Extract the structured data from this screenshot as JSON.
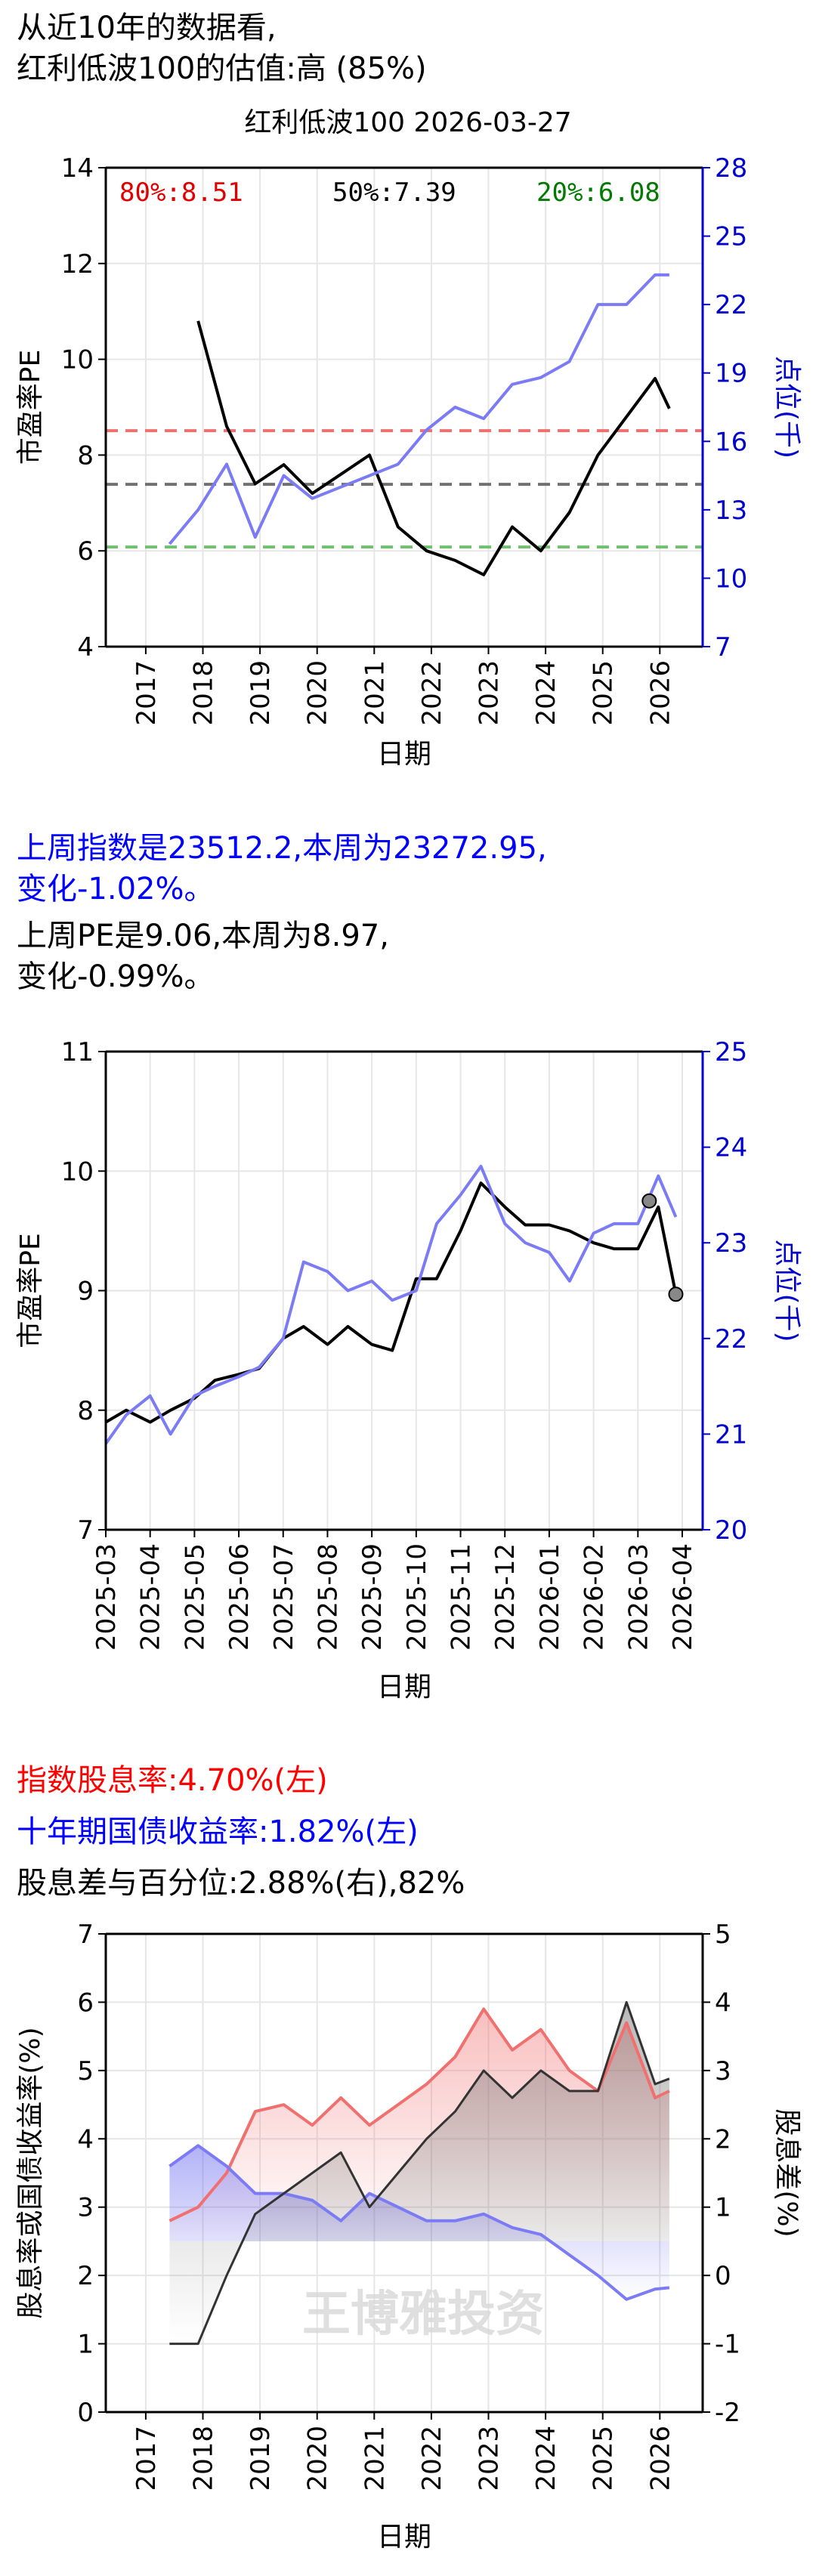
{
  "header": {
    "line1": "从近10年的数据看,",
    "line2": "红利低波100的估值:高 (85%)"
  },
  "chart1": {
    "title": "红利低波100 2026-03-27",
    "ylabel_left": "市盈率PE",
    "ylabel_right": "点位(千)",
    "xlabel": "日期",
    "pct80_label": "80%:8.51",
    "pct50_label": "50%:7.39",
    "pct20_label": "20%:6.08",
    "left_ticks": [
      "4",
      "6",
      "8",
      "10",
      "12",
      "14"
    ],
    "right_ticks": [
      "7",
      "10",
      "13",
      "16",
      "19",
      "22",
      "25",
      "28"
    ],
    "x_ticks": [
      "2017",
      "2018",
      "2019",
      "2020",
      "2021",
      "2022",
      "2023",
      "2024",
      "2025",
      "2026"
    ]
  },
  "weekly": {
    "index_line1": "上周指数是23512.2,本周为23272.95,",
    "index_line2": "变化-1.02%。",
    "pe_line1": "上周PE是9.06,本周为8.97,",
    "pe_line2": "变化-0.99%。"
  },
  "chart2": {
    "ylabel_left": "市盈率PE",
    "ylabel_right": "点位(千)",
    "xlabel": "日期",
    "left_ticks": [
      "7",
      "8",
      "9",
      "10",
      "11"
    ],
    "right_ticks": [
      "20",
      "21",
      "22",
      "23",
      "24",
      "25"
    ],
    "x_ticks": [
      "2025-03",
      "2025-04",
      "2025-05",
      "2025-06",
      "2025-07",
      "2025-08",
      "2025-09",
      "2025-10",
      "2025-11",
      "2025-12",
      "2026-01",
      "2026-02",
      "2026-03",
      "2026-04"
    ]
  },
  "yield": {
    "line1": "指数股息率:4.70%(左)",
    "line2": "十年期国债收益率:1.82%(左)",
    "line3": "股息差与百分位:2.88%(右),82%"
  },
  "chart3": {
    "ylabel_left": "股息率或国债收益率(%)",
    "ylabel_right": "股息差(%)",
    "xlabel": "日期",
    "watermark": "王博雅投资",
    "left_ticks": [
      "0",
      "1",
      "2",
      "3",
      "4",
      "5",
      "6",
      "7"
    ],
    "right_ticks": [
      "-2",
      "-1",
      "0",
      "1",
      "2",
      "3",
      "4",
      "5"
    ],
    "x_ticks": [
      "2017",
      "2018",
      "2019",
      "2020",
      "2021",
      "2022",
      "2023",
      "2024",
      "2025",
      "2026"
    ]
  },
  "chart_data": [
    {
      "type": "line",
      "title": "红利低波100 2026-03-27",
      "xlabel": "日期",
      "ylabel": "市盈率PE",
      "ylabel_right": "点位(千)",
      "ylim": [
        4,
        14
      ],
      "ylim_right": [
        7,
        28
      ],
      "x": [
        "2017-06",
        "2017-12",
        "2018-06",
        "2018-12",
        "2019-06",
        "2019-12",
        "2020-06",
        "2020-12",
        "2021-06",
        "2021-12",
        "2022-06",
        "2022-12",
        "2023-06",
        "2023-12",
        "2024-06",
        "2024-12",
        "2025-06",
        "2025-12",
        "2026-03"
      ],
      "series": [
        {
          "name": "PE",
          "axis": "left",
          "color": "#000000",
          "values": [
            null,
            10.8,
            8.6,
            7.4,
            7.8,
            7.2,
            7.6,
            8.0,
            6.5,
            6.0,
            5.8,
            5.5,
            6.5,
            6.0,
            6.8,
            8.0,
            8.8,
            9.6,
            8.97
          ]
        },
        {
          "name": "点位",
          "axis": "right",
          "color": "#7b7bf5",
          "values": [
            11.5,
            13.0,
            15.0,
            11.8,
            14.5,
            13.5,
            14.0,
            14.5,
            15.0,
            16.5,
            17.5,
            17.0,
            18.5,
            18.8,
            19.5,
            22.0,
            22.0,
            23.3,
            23.3
          ]
        }
      ],
      "hlines": [
        {
          "label": "80%:8.51",
          "value": 8.51,
          "color": "#f07070"
        },
        {
          "label": "50%:7.39",
          "value": 7.39,
          "color": "#707070"
        },
        {
          "label": "20%:6.08",
          "value": 6.08,
          "color": "#70c070"
        }
      ],
      "grid": true
    },
    {
      "type": "line",
      "xlabel": "日期",
      "ylabel": "市盈率PE",
      "ylabel_right": "点位(千)",
      "ylim": [
        7,
        11
      ],
      "ylim_right": [
        20,
        25
      ],
      "x": [
        "2025-03-01",
        "2025-03-15",
        "2025-04-01",
        "2025-04-15",
        "2025-05-01",
        "2025-05-15",
        "2025-06-01",
        "2025-06-15",
        "2025-07-01",
        "2025-07-15",
        "2025-08-01",
        "2025-08-15",
        "2025-09-01",
        "2025-09-15",
        "2025-10-01",
        "2025-10-15",
        "2025-11-01",
        "2025-11-15",
        "2025-12-01",
        "2025-12-15",
        "2026-01-01",
        "2026-01-15",
        "2026-02-01",
        "2026-02-15",
        "2026-03-01",
        "2026-03-15",
        "2026-03-27"
      ],
      "series": [
        {
          "name": "PE",
          "axis": "left",
          "color": "#000000",
          "values": [
            7.9,
            8.0,
            7.9,
            8.0,
            8.1,
            8.25,
            8.3,
            8.35,
            8.6,
            8.7,
            8.55,
            8.7,
            8.55,
            8.5,
            9.1,
            9.1,
            9.5,
            9.9,
            9.7,
            9.55,
            9.55,
            9.5,
            9.4,
            9.35,
            9.35,
            9.7,
            8.97
          ]
        },
        {
          "name": "点位",
          "axis": "right",
          "color": "#7b7bf5",
          "values": [
            20.9,
            21.2,
            21.4,
            21.0,
            21.4,
            21.5,
            21.6,
            21.7,
            22.0,
            22.8,
            22.7,
            22.5,
            22.6,
            22.4,
            22.5,
            23.2,
            23.5,
            23.8,
            23.2,
            23.0,
            22.9,
            22.6,
            23.1,
            23.2,
            23.2,
            23.7,
            23.27
          ]
        }
      ],
      "grid": true
    },
    {
      "type": "area",
      "xlabel": "日期",
      "ylabel": "股息率或国债收益率(%)",
      "ylabel_right": "股息差(%)",
      "ylim": [
        0,
        7
      ],
      "ylim_right": [
        -2,
        5
      ],
      "x": [
        "2017-06",
        "2017-12",
        "2018-06",
        "2018-12",
        "2019-06",
        "2019-12",
        "2020-06",
        "2020-12",
        "2021-06",
        "2021-12",
        "2022-06",
        "2022-12",
        "2023-06",
        "2023-12",
        "2024-06",
        "2024-12",
        "2025-06",
        "2025-12",
        "2026-03"
      ],
      "series": [
        {
          "name": "指数股息率",
          "axis": "left",
          "color": "#f07070",
          "values": [
            2.8,
            3.0,
            3.5,
            4.4,
            4.5,
            4.2,
            4.6,
            4.2,
            4.5,
            4.8,
            5.2,
            5.9,
            5.3,
            5.6,
            5.0,
            4.7,
            5.7,
            4.6,
            4.7
          ]
        },
        {
          "name": "十年期国债收益率",
          "axis": "left",
          "color": "#7b7bf5",
          "values": [
            3.6,
            3.9,
            3.6,
            3.2,
            3.2,
            3.1,
            2.8,
            3.2,
            3.0,
            2.8,
            2.8,
            2.9,
            2.7,
            2.6,
            2.3,
            2.0,
            1.65,
            1.8,
            1.82
          ]
        },
        {
          "name": "股息差",
          "axis": "right",
          "color": "#333333",
          "values": [
            -1.0,
            -1.0,
            0.0,
            0.9,
            1.2,
            1.5,
            1.8,
            1.0,
            1.5,
            2.0,
            2.4,
            3.0,
            2.6,
            3.0,
            2.7,
            2.7,
            4.0,
            2.8,
            2.88
          ]
        }
      ],
      "grid": true
    }
  ]
}
